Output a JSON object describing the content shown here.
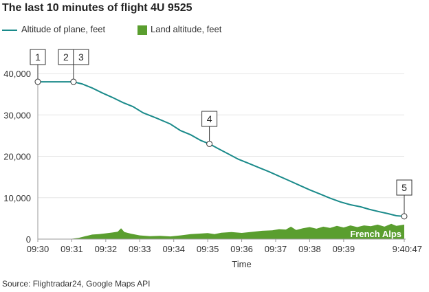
{
  "title": "The last 10 minutes of flight 4U 9525",
  "source": "Source: Flightradar24, Google Maps API",
  "colors": {
    "plane": "#1a8a8a",
    "land": "#5a9e2f",
    "axis": "#999999",
    "grid": "#e6e6e6"
  },
  "legend": [
    {
      "label": "Altitude of plane, feet",
      "swatch": "line",
      "color": "#1a8a8a"
    },
    {
      "label": "Land altitude, feet",
      "swatch": "box",
      "color": "#5a9e2f"
    }
  ],
  "chart_data": {
    "type": "line",
    "title": "The last 10 minutes of flight 4U 9525",
    "xlabel": "Time",
    "ylabel": "",
    "x_unit": "minutes",
    "xlim": [
      570,
      580.7833
    ],
    "ylim": [
      0,
      40000
    ],
    "x_ticks": [
      {
        "x": 570,
        "label": "09:30"
      },
      {
        "x": 571,
        "label": "09:31"
      },
      {
        "x": 572,
        "label": "09:32"
      },
      {
        "x": 573,
        "label": "09:33"
      },
      {
        "x": 574,
        "label": "09:34"
      },
      {
        "x": 575,
        "label": "09:35"
      },
      {
        "x": 576,
        "label": "09:36"
      },
      {
        "x": 577,
        "label": "09:37"
      },
      {
        "x": 578,
        "label": "09:38"
      },
      {
        "x": 579,
        "label": "09:39"
      },
      {
        "x": 580.7833,
        "label": "9:40:47"
      }
    ],
    "y_ticks": [
      {
        "y": 0,
        "label": "0"
      },
      {
        "y": 10000,
        "label": "10,000"
      },
      {
        "y": 20000,
        "label": "20,000"
      },
      {
        "y": 30000,
        "label": "30,000"
      },
      {
        "y": 40000,
        "label": "40,000"
      }
    ],
    "series": [
      {
        "name": "Altitude of plane, feet",
        "kind": "line",
        "color": "#1a8a8a",
        "points": [
          [
            570.0,
            38000
          ],
          [
            570.5,
            38000
          ],
          [
            571.05,
            38000
          ],
          [
            571.3,
            37500
          ],
          [
            571.6,
            36500
          ],
          [
            571.9,
            35300
          ],
          [
            572.2,
            34200
          ],
          [
            572.5,
            33000
          ],
          [
            572.8,
            32000
          ],
          [
            573.1,
            30500
          ],
          [
            573.5,
            29200
          ],
          [
            573.9,
            27800
          ],
          [
            574.2,
            26200
          ],
          [
            574.5,
            25200
          ],
          [
            574.8,
            23800
          ],
          [
            575.05,
            23000
          ],
          [
            575.3,
            21900
          ],
          [
            575.6,
            20600
          ],
          [
            575.9,
            19300
          ],
          [
            576.2,
            18300
          ],
          [
            576.5,
            17300
          ],
          [
            576.8,
            16300
          ],
          [
            577.1,
            15200
          ],
          [
            577.4,
            14100
          ],
          [
            577.7,
            13000
          ],
          [
            578.0,
            11900
          ],
          [
            578.3,
            10900
          ],
          [
            578.6,
            9900
          ],
          [
            578.9,
            9000
          ],
          [
            579.2,
            8300
          ],
          [
            579.5,
            7800
          ],
          [
            579.75,
            7200
          ],
          [
            580.05,
            6600
          ],
          [
            580.3,
            6150
          ],
          [
            580.55,
            5650
          ],
          [
            580.7833,
            5500
          ]
        ]
      },
      {
        "name": "Land altitude, feet",
        "kind": "area",
        "color": "#5a9e2f",
        "points": [
          [
            570.0,
            0
          ],
          [
            570.8,
            0
          ],
          [
            571.0,
            80
          ],
          [
            571.2,
            300
          ],
          [
            571.4,
            700
          ],
          [
            571.6,
            1100
          ],
          [
            571.8,
            1200
          ],
          [
            572.0,
            1400
          ],
          [
            572.2,
            1600
          ],
          [
            572.35,
            1800
          ],
          [
            572.45,
            2600
          ],
          [
            572.55,
            1700
          ],
          [
            572.75,
            1300
          ],
          [
            573.0,
            900
          ],
          [
            573.3,
            700
          ],
          [
            573.6,
            800
          ],
          [
            573.9,
            650
          ],
          [
            574.2,
            900
          ],
          [
            574.5,
            1200
          ],
          [
            574.8,
            1350
          ],
          [
            575.0,
            1450
          ],
          [
            575.2,
            1200
          ],
          [
            575.4,
            1550
          ],
          [
            575.7,
            1700
          ],
          [
            576.0,
            1500
          ],
          [
            576.3,
            1750
          ],
          [
            576.6,
            2000
          ],
          [
            576.9,
            2100
          ],
          [
            577.1,
            2400
          ],
          [
            577.3,
            2300
          ],
          [
            577.45,
            3000
          ],
          [
            577.6,
            2200
          ],
          [
            577.8,
            2600
          ],
          [
            578.0,
            2900
          ],
          [
            578.2,
            2500
          ],
          [
            578.4,
            3000
          ],
          [
            578.6,
            2700
          ],
          [
            578.8,
            3200
          ],
          [
            579.0,
            2800
          ],
          [
            579.2,
            3300
          ],
          [
            579.4,
            2900
          ],
          [
            579.6,
            3300
          ],
          [
            579.8,
            3100
          ],
          [
            580.0,
            3500
          ],
          [
            580.2,
            3000
          ],
          [
            580.4,
            3700
          ],
          [
            580.55,
            3200
          ],
          [
            580.7833,
            3500
          ]
        ]
      }
    ],
    "events": [
      {
        "label": "1",
        "x": 570.0,
        "y": 38000
      },
      {
        "label": "2",
        "x": 571.05,
        "y": 38000
      },
      {
        "label": "3",
        "x": 571.05,
        "y": 38000
      },
      {
        "label": "5",
        "x": 580.7833,
        "y": 5500
      },
      {
        "label": "4",
        "x": 575.05,
        "y": 23000
      }
    ],
    "annotation": "French Alps"
  }
}
